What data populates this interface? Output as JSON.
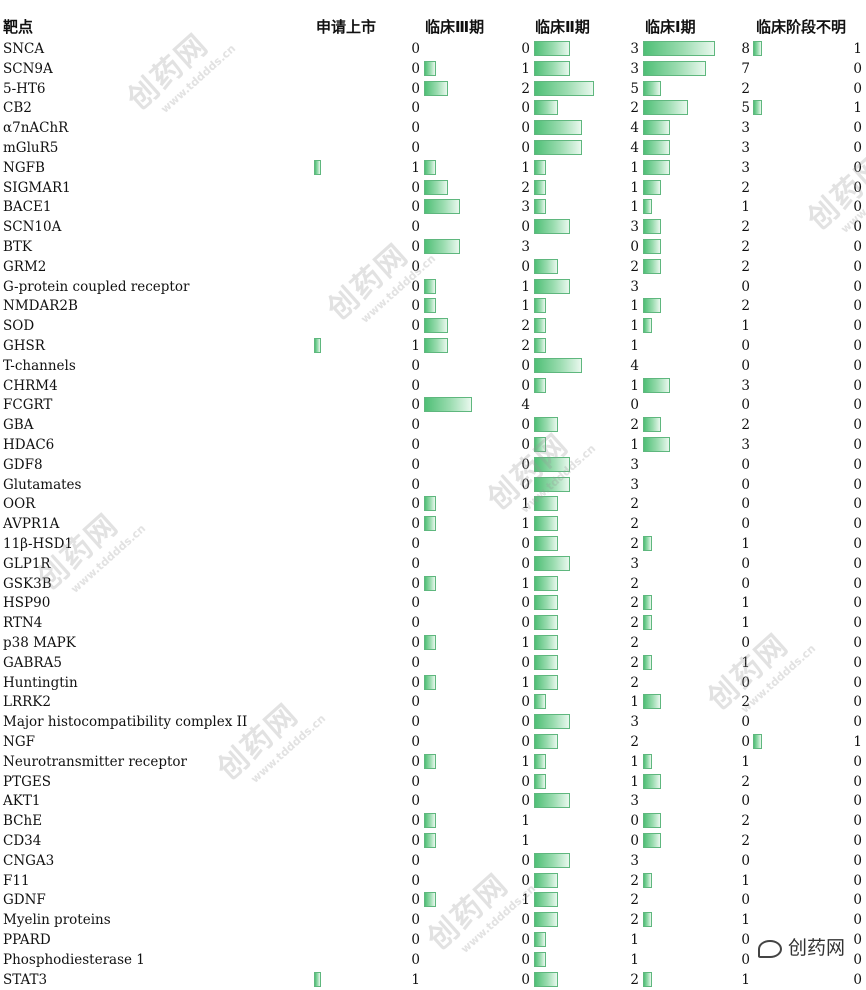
{
  "headers": {
    "target": "靶点",
    "approved": "申请上市",
    "phase3": "临床Ⅲ期",
    "phase2": "临床Ⅱ期",
    "phase1": "临床Ⅰ期",
    "unknown": "临床阶段不明"
  },
  "bar_color": "#5cc585",
  "rows": [
    {
      "target": "SNCA",
      "approved": 0,
      "phase3": 0,
      "phase2": 3,
      "phase1": 8,
      "unknown": 1
    },
    {
      "target": "SCN9A",
      "approved": 0,
      "phase3": 1,
      "phase2": 3,
      "phase1": 7,
      "unknown": 0
    },
    {
      "target": "5-HT6",
      "approved": 0,
      "phase3": 2,
      "phase2": 5,
      "phase1": 2,
      "unknown": 0
    },
    {
      "target": "CB2",
      "approved": 0,
      "phase3": 0,
      "phase2": 2,
      "phase1": 5,
      "unknown": 1
    },
    {
      "target": "α7nAChR",
      "approved": 0,
      "phase3": 0,
      "phase2": 4,
      "phase1": 3,
      "unknown": 0
    },
    {
      "target": "mGluR5",
      "approved": 0,
      "phase3": 0,
      "phase2": 4,
      "phase1": 3,
      "unknown": 0
    },
    {
      "target": "NGFB",
      "approved": 1,
      "phase3": 1,
      "phase2": 1,
      "phase1": 3,
      "unknown": 0
    },
    {
      "target": "SIGMAR1",
      "approved": 0,
      "phase3": 2,
      "phase2": 1,
      "phase1": 2,
      "unknown": 0
    },
    {
      "target": "BACE1",
      "approved": 0,
      "phase3": 3,
      "phase2": 1,
      "phase1": 1,
      "unknown": 0
    },
    {
      "target": "SCN10A",
      "approved": 0,
      "phase3": 0,
      "phase2": 3,
      "phase1": 2,
      "unknown": 0
    },
    {
      "target": "BTK",
      "approved": 0,
      "phase3": 3,
      "phase2": 0,
      "phase1": 2,
      "unknown": 0
    },
    {
      "target": "GRM2",
      "approved": 0,
      "phase3": 0,
      "phase2": 2,
      "phase1": 2,
      "unknown": 0
    },
    {
      "target": "G-protein coupled receptor",
      "approved": 0,
      "phase3": 1,
      "phase2": 3,
      "phase1": 0,
      "unknown": 0
    },
    {
      "target": "NMDAR2B",
      "approved": 0,
      "phase3": 1,
      "phase2": 1,
      "phase1": 2,
      "unknown": 0
    },
    {
      "target": "SOD",
      "approved": 0,
      "phase3": 2,
      "phase2": 1,
      "phase1": 1,
      "unknown": 0
    },
    {
      "target": "GHSR",
      "approved": 1,
      "phase3": 2,
      "phase2": 1,
      "phase1": 0,
      "unknown": 0
    },
    {
      "target": "T-channels",
      "approved": 0,
      "phase3": 0,
      "phase2": 4,
      "phase1": 0,
      "unknown": 0
    },
    {
      "target": "CHRM4",
      "approved": 0,
      "phase3": 0,
      "phase2": 1,
      "phase1": 3,
      "unknown": 0
    },
    {
      "target": "FCGRT",
      "approved": 0,
      "phase3": 4,
      "phase2": 0,
      "phase1": 0,
      "unknown": 0
    },
    {
      "target": "GBA",
      "approved": 0,
      "phase3": 0,
      "phase2": 2,
      "phase1": 2,
      "unknown": 0
    },
    {
      "target": "HDAC6",
      "approved": 0,
      "phase3": 0,
      "phase2": 1,
      "phase1": 3,
      "unknown": 0
    },
    {
      "target": "GDF8",
      "approved": 0,
      "phase3": 0,
      "phase2": 3,
      "phase1": 0,
      "unknown": 0
    },
    {
      "target": "Glutamates",
      "approved": 0,
      "phase3": 0,
      "phase2": 3,
      "phase1": 0,
      "unknown": 0
    },
    {
      "target": "OOR",
      "approved": 0,
      "phase3": 1,
      "phase2": 2,
      "phase1": 0,
      "unknown": 0
    },
    {
      "target": "AVPR1A",
      "approved": 0,
      "phase3": 1,
      "phase2": 2,
      "phase1": 0,
      "unknown": 0
    },
    {
      "target": "11β-HSD1",
      "approved": 0,
      "phase3": 0,
      "phase2": 2,
      "phase1": 1,
      "unknown": 0
    },
    {
      "target": "GLP1R",
      "approved": 0,
      "phase3": 0,
      "phase2": 3,
      "phase1": 0,
      "unknown": 0
    },
    {
      "target": "GSK3B",
      "approved": 0,
      "phase3": 1,
      "phase2": 2,
      "phase1": 0,
      "unknown": 0
    },
    {
      "target": "HSP90",
      "approved": 0,
      "phase3": 0,
      "phase2": 2,
      "phase1": 1,
      "unknown": 0
    },
    {
      "target": "RTN4",
      "approved": 0,
      "phase3": 0,
      "phase2": 2,
      "phase1": 1,
      "unknown": 0
    },
    {
      "target": "p38 MAPK",
      "approved": 0,
      "phase3": 1,
      "phase2": 2,
      "phase1": 0,
      "unknown": 0
    },
    {
      "target": "GABRA5",
      "approved": 0,
      "phase3": 0,
      "phase2": 2,
      "phase1": 1,
      "unknown": 0
    },
    {
      "target": "Huntingtin",
      "approved": 0,
      "phase3": 1,
      "phase2": 2,
      "phase1": 0,
      "unknown": 0
    },
    {
      "target": "LRRK2",
      "approved": 0,
      "phase3": 0,
      "phase2": 1,
      "phase1": 2,
      "unknown": 0
    },
    {
      "target": "Major histocompatibility complex II",
      "approved": 0,
      "phase3": 0,
      "phase2": 3,
      "phase1": 0,
      "unknown": 0
    },
    {
      "target": "NGF",
      "approved": 0,
      "phase3": 0,
      "phase2": 2,
      "phase1": 0,
      "unknown": 1
    },
    {
      "target": "Neurotransmitter receptor",
      "approved": 0,
      "phase3": 1,
      "phase2": 1,
      "phase1": 1,
      "unknown": 0
    },
    {
      "target": "PTGES",
      "approved": 0,
      "phase3": 0,
      "phase2": 1,
      "phase1": 2,
      "unknown": 0
    },
    {
      "target": "AKT1",
      "approved": 0,
      "phase3": 0,
      "phase2": 3,
      "phase1": 0,
      "unknown": 0
    },
    {
      "target": "BChE",
      "approved": 0,
      "phase3": 1,
      "phase2": 0,
      "phase1": 2,
      "unknown": 0
    },
    {
      "target": "CD34",
      "approved": 0,
      "phase3": 1,
      "phase2": 0,
      "phase1": 2,
      "unknown": 0
    },
    {
      "target": "CNGA3",
      "approved": 0,
      "phase3": 0,
      "phase2": 3,
      "phase1": 0,
      "unknown": 0
    },
    {
      "target": "F11",
      "approved": 0,
      "phase3": 0,
      "phase2": 2,
      "phase1": 1,
      "unknown": 0
    },
    {
      "target": "GDNF",
      "approved": 0,
      "phase3": 1,
      "phase2": 2,
      "phase1": 0,
      "unknown": 0
    },
    {
      "target": "Myelin proteins",
      "approved": 0,
      "phase3": 0,
      "phase2": 2,
      "phase1": 1,
      "unknown": 0
    },
    {
      "target": "PPARD",
      "approved": 0,
      "phase3": 0,
      "phase2": 1,
      "phase1": 0,
      "unknown": 0
    },
    {
      "target": "Phosphodiesterase 1",
      "approved": 0,
      "phase3": 0,
      "phase2": 1,
      "phase1": 0,
      "unknown": 0
    },
    {
      "target": "STAT3",
      "approved": 1,
      "phase3": 0,
      "phase2": 2,
      "phase1": 1,
      "unknown": 0
    }
  ],
  "watermark": {
    "brand": "创药网",
    "url": "www.tdddds.cn"
  },
  "logo_text": "创药网"
}
